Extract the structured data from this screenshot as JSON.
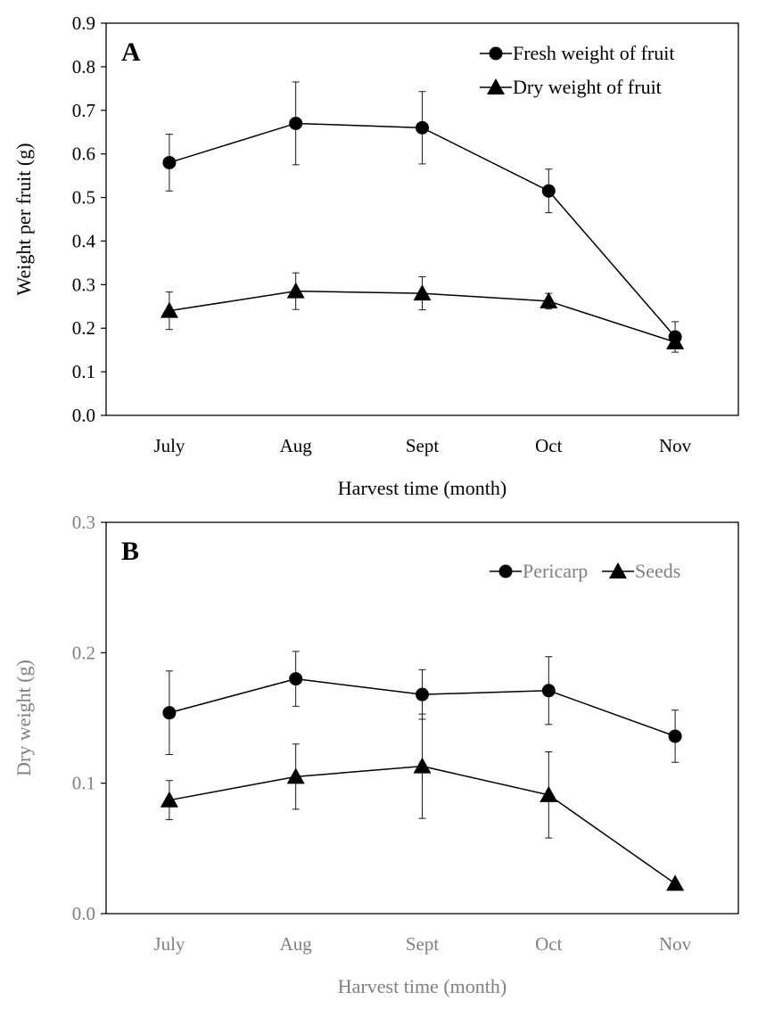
{
  "chart_data": [
    {
      "type": "line",
      "panel_label": "A",
      "categories": [
        "July",
        "Aug",
        "Sept",
        "Oct",
        "Nov"
      ],
      "xlabel": "Harvest time (month)",
      "ylabel": "Weight per fruit (g)",
      "ylim": [
        0,
        0.9
      ],
      "yticks": [
        "0.0",
        "0.1",
        "0.2",
        "0.3",
        "0.4",
        "0.5",
        "0.6",
        "0.7",
        "0.8",
        "0.9"
      ],
      "grid": false,
      "legend_position": "top-right",
      "text_color": "#000000",
      "series": [
        {
          "name": "Fresh weight of fruit",
          "marker": "circle",
          "values": [
            0.58,
            0.67,
            0.66,
            0.515,
            0.18
          ],
          "errors": [
            0.065,
            0.095,
            0.083,
            0.05,
            0.035
          ]
        },
        {
          "name": "Dry weight of fruit",
          "marker": "triangle",
          "values": [
            0.24,
            0.285,
            0.28,
            0.262,
            0.168
          ],
          "errors": [
            0.043,
            0.042,
            0.038,
            0.018,
            0.012
          ]
        }
      ]
    },
    {
      "type": "line",
      "panel_label": "B",
      "categories": [
        "July",
        "Aug",
        "Sept",
        "Oct",
        "Nov"
      ],
      "xlabel": "Harvest time (month)",
      "ylabel": "Dry weight (g)",
      "ylim": [
        0,
        0.3
      ],
      "yticks": [
        "0.0",
        "0.1",
        "0.2",
        "0.3"
      ],
      "grid": false,
      "legend_position": "top-right",
      "text_color": "#808080",
      "series": [
        {
          "name": "Pericarp",
          "marker": "circle",
          "values": [
            0.154,
            0.18,
            0.168,
            0.171,
            0.136
          ],
          "errors": [
            0.032,
            0.021,
            0.019,
            0.026,
            0.02
          ]
        },
        {
          "name": "Seeds",
          "marker": "triangle",
          "values": [
            0.087,
            0.105,
            0.113,
            0.091,
            0.023
          ],
          "errors": [
            0.015,
            0.025,
            0.04,
            0.033,
            0.0
          ]
        }
      ]
    }
  ]
}
